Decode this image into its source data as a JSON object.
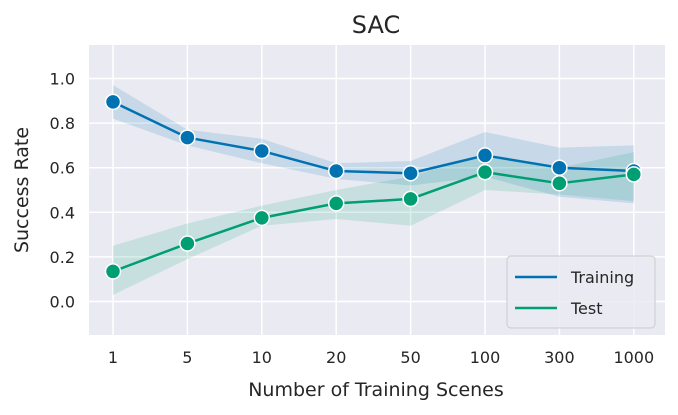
{
  "chart_data": {
    "type": "line",
    "title": "SAC",
    "xlabel": "Number of Training Scenes",
    "ylabel": "Success Rate",
    "categories": [
      "1",
      "5",
      "10",
      "20",
      "50",
      "100",
      "300",
      "1000"
    ],
    "y_ticks": [
      "0.0",
      "0.2",
      "0.4",
      "0.6",
      "0.8",
      "1.0"
    ],
    "ylim": [
      -0.15,
      1.15
    ],
    "grid": true,
    "legend_position": "bottom-right",
    "series": [
      {
        "name": "Training",
        "color": "#0072b2",
        "values": [
          0.895,
          0.735,
          0.675,
          0.585,
          0.575,
          0.655,
          0.6,
          0.585
        ],
        "ci_lower": [
          0.82,
          0.7,
          0.62,
          0.55,
          0.52,
          0.56,
          0.47,
          0.44
        ],
        "ci_upper": [
          0.97,
          0.77,
          0.73,
          0.62,
          0.63,
          0.76,
          0.69,
          0.7
        ]
      },
      {
        "name": "Test",
        "color": "#009e73",
        "values": [
          0.135,
          0.26,
          0.375,
          0.44,
          0.46,
          0.58,
          0.53,
          0.57
        ],
        "ci_lower": [
          0.03,
          0.19,
          0.34,
          0.37,
          0.34,
          0.5,
          0.48,
          0.45
        ],
        "ci_upper": [
          0.25,
          0.35,
          0.43,
          0.5,
          0.56,
          0.66,
          0.6,
          0.67
        ]
      }
    ]
  }
}
